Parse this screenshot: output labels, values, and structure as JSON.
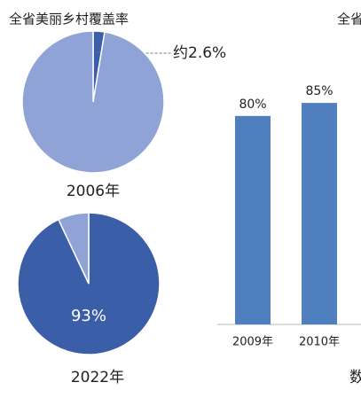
{
  "chart_data": [
    {
      "type": "pie",
      "title": "全省美丽乡村覆盖率",
      "caption": "2006年",
      "values": [
        2.6,
        97.4
      ],
      "value_labels": [
        "约2.6%",
        null
      ],
      "colors": [
        "#3a5ea8",
        "#8fa3d6"
      ]
    },
    {
      "type": "pie",
      "caption": "2022年",
      "values": [
        93,
        7
      ],
      "value_labels": [
        "93%",
        null
      ],
      "colors": [
        "#3a5ea8",
        "#8fa3d6"
      ]
    },
    {
      "type": "bar",
      "title": "全省",
      "categories": [
        "2009年",
        "2010年"
      ],
      "values": [
        80,
        85
      ],
      "value_labels": [
        "80%",
        "85%"
      ],
      "color": "#4f7fbe",
      "ylim": [
        0,
        100
      ],
      "note": "数"
    }
  ]
}
